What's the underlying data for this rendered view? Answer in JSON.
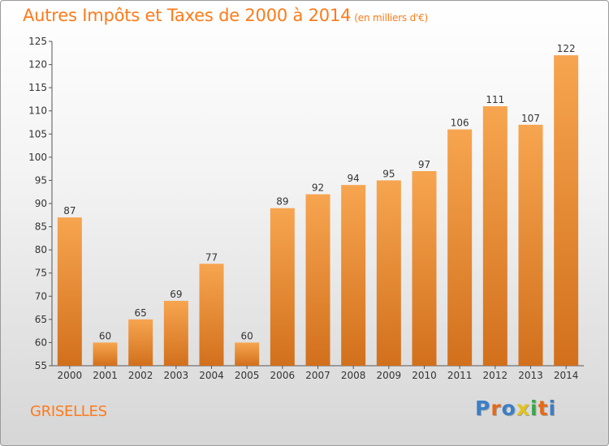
{
  "header": {
    "title": "Autres Impôts et Taxes de 2000 à 2014",
    "unit": "(en milliers d'€)"
  },
  "footer": {
    "commune": "GRISELLES",
    "brand": "Proxiti"
  },
  "colors": {
    "accent": "#ff7a1a",
    "bar_light": "#f7a550",
    "bar_dark": "#d2701c",
    "logo_letters": [
      "#3a7fc7",
      "#e36a1b",
      "#3a7fc7",
      "#e3c21b",
      "#3aa84a",
      "#e36a1b",
      "#3a7fc7"
    ]
  },
  "chart_data": {
    "type": "bar",
    "categories": [
      "2000",
      "2001",
      "2002",
      "2003",
      "2004",
      "2005",
      "2006",
      "2007",
      "2008",
      "2009",
      "2010",
      "2011",
      "2012",
      "2013",
      "2014"
    ],
    "values": [
      87,
      60,
      65,
      69,
      77,
      60,
      89,
      92,
      94,
      95,
      97,
      106,
      111,
      107,
      122
    ],
    "title": "Autres Impôts et Taxes de 2000 à 2014",
    "ylim": [
      55,
      125
    ],
    "yticks": [
      55,
      60,
      65,
      70,
      75,
      80,
      85,
      90,
      95,
      100,
      105,
      110,
      115,
      120,
      125
    ],
    "grid": false,
    "legend": "none"
  }
}
